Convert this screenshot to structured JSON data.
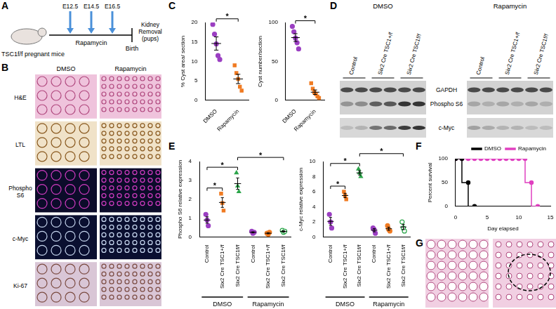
{
  "panels": [
    {
      "label": "A",
      "subject": "TSC1f/f pregnant mice",
      "timepoints": [
        "E12.5",
        "E14.5",
        "E16.5"
      ],
      "treatment": "Rapamycin",
      "end": "Birth",
      "outcome": "Kidney Removal (pups)"
    },
    {
      "label": "B",
      "columns": [
        "DMSO",
        "Rapamycin"
      ],
      "rows": [
        "H&E",
        "LTL",
        "Phospho S6",
        "c-Myc",
        "Ki-67"
      ]
    },
    {
      "label": "C"
    },
    {
      "label": "D",
      "blots": [
        "DMSO",
        "Rapamycin"
      ],
      "lanes": [
        "Control",
        "Six2 Cre TSC1+/f",
        "Six2 Cre TSC1f/f"
      ],
      "bands": [
        "GAPDH",
        "Phospho S6",
        "c-Myc"
      ]
    },
    {
      "label": "E"
    },
    {
      "label": "F"
    },
    {
      "label": "G"
    }
  ],
  "chart_data": [
    {
      "type": "scatter",
      "ylabel": "% Cyst area/ section",
      "categories": [
        "DMSO",
        "Rapamycin"
      ],
      "groups": [
        {
          "values": [
            19.5,
            17.0,
            14.5,
            11.5,
            10.5
          ],
          "mean": 14.6,
          "error": 1.7,
          "color": "#9b3fc2",
          "marker": "circle"
        },
        {
          "values": [
            9.0,
            7.0,
            5.5,
            3.5,
            2.5
          ],
          "mean": 5.5,
          "error": 1.2,
          "color": "#f07b22",
          "marker": "rect"
        }
      ],
      "significance": [
        {
          "from": 0,
          "to": 1,
          "label": "*"
        }
      ],
      "ylim": [
        0,
        20
      ],
      "yticks": [
        0,
        5,
        10,
        15,
        20
      ],
      "grid": false
    },
    {
      "type": "scatter",
      "ylabel": "Cyst number/section",
      "categories": [
        "DMSO",
        "Rapamycin"
      ],
      "groups": [
        {
          "values": [
            95,
            88,
            80,
            74,
            66
          ],
          "mean": 80.6,
          "error": 5.0,
          "color": "#9b3fc2",
          "marker": "circle"
        },
        {
          "values": [
            22,
            15,
            10,
            8,
            5,
            3
          ],
          "mean": 10.5,
          "error": 2.9,
          "color": "#f07b22",
          "marker": "rect"
        }
      ],
      "significance": [
        {
          "from": 0,
          "to": 1,
          "label": "*"
        }
      ],
      "ylim": [
        0,
        100
      ],
      "yticks": [
        0,
        50,
        100
      ],
      "grid": false
    },
    {
      "type": "scatter",
      "ylabel": "Phospho S6 relative expression",
      "categories": [
        "Control",
        "Six2 Cre TSC1+/f",
        "Six2 Cre TSC1f/f",
        "Control",
        "Six2 Cre TSC1+/f",
        "Six2 Cre TSC1f/f"
      ],
      "category_groups": [
        {
          "label": "DMSO",
          "from": 0,
          "to": 2
        },
        {
          "label": "Rapamycin",
          "from": 3,
          "to": 5
        }
      ],
      "groups": [
        {
          "values": [
            1.2,
            0.9,
            0.6
          ],
          "mean": 0.9,
          "error": 0.17,
          "color": "#9b3fc2",
          "marker": "circle"
        },
        {
          "values": [
            2.3,
            1.8,
            1.4
          ],
          "mean": 1.83,
          "error": 0.26,
          "color": "#f07b22",
          "marker": "rect"
        },
        {
          "values": [
            3.4,
            2.7,
            2.4
          ],
          "mean": 2.83,
          "error": 0.3,
          "color": "#2ca54a",
          "marker": "triangle"
        },
        {
          "values": [
            0.3,
            0.2,
            0.25
          ],
          "mean": 0.25,
          "error": 0.03,
          "color": "#9b3fc2",
          "marker": "circle"
        },
        {
          "values": [
            0.2,
            0.15,
            0.25
          ],
          "mean": 0.2,
          "error": 0.03,
          "color": "#f07b22",
          "marker": "circle"
        },
        {
          "values": [
            0.35,
            0.25,
            0.3
          ],
          "mean": 0.3,
          "error": 0.03,
          "color": "#2ca54a",
          "marker": "open-circle"
        }
      ],
      "significance": [
        {
          "from": 0,
          "to": 1,
          "label": "*"
        },
        {
          "from": 0,
          "to": 2,
          "label": "*"
        },
        {
          "from": 2,
          "to": 5,
          "label": "*"
        }
      ],
      "ylim": [
        0,
        4
      ],
      "yticks": [
        0,
        1,
        2,
        3,
        4
      ],
      "grid": false
    },
    {
      "type": "scatter",
      "ylabel": "c-Myc relative expression",
      "categories": [
        "Control",
        "Six2 Cre TSC1+/f",
        "Six2 Cre TSC1f/f",
        "Control",
        "Six2 Cre TSC1+/f",
        "Six2 Cre TSC1f/f"
      ],
      "category_groups": [
        {
          "label": "DMSO",
          "from": 0,
          "to": 2
        },
        {
          "label": "Rapamycin",
          "from": 3,
          "to": 5
        }
      ],
      "groups": [
        {
          "values": [
            3.0,
            2.0,
            1.2
          ],
          "mean": 2.07,
          "error": 0.52,
          "color": "#9b3fc2",
          "marker": "circle"
        },
        {
          "values": [
            6.0,
            5.5,
            5.0
          ],
          "mean": 5.5,
          "error": 0.29,
          "color": "#f07b22",
          "marker": "rect"
        },
        {
          "values": [
            9.0,
            8.5,
            8.0
          ],
          "mean": 8.5,
          "error": 0.29,
          "color": "#2ca54a",
          "marker": "triangle"
        },
        {
          "values": [
            1.2,
            1.0,
            0.5
          ],
          "mean": 0.9,
          "error": 0.21,
          "color": "#9b3fc2",
          "marker": "circle"
        },
        {
          "values": [
            1.5,
            1.0,
            0.8
          ],
          "mean": 1.1,
          "error": 0.21,
          "color": "#f07b22",
          "marker": "circle"
        },
        {
          "values": [
            2.0,
            1.2,
            0.8
          ],
          "mean": 1.33,
          "error": 0.35,
          "color": "#2ca54a",
          "marker": "open-circle"
        }
      ],
      "significance": [
        {
          "from": 0,
          "to": 1,
          "label": "*"
        },
        {
          "from": 0,
          "to": 2,
          "label": "*"
        },
        {
          "from": 2,
          "to": 5,
          "label": "*"
        }
      ],
      "ylim": [
        0,
        10
      ],
      "yticks": [
        0,
        2,
        4,
        6,
        8,
        10
      ],
      "grid": false
    },
    {
      "type": "line",
      "xlabel": "Day elapsed",
      "ylabel": "Percent survival",
      "line_style": "step",
      "legend": "top-right",
      "series": [
        {
          "name": "DMSO",
          "color": "#000000",
          "marker": "circle",
          "x": [
            0,
            1,
            2,
            3
          ],
          "values": [
            100,
            100,
            50,
            0
          ]
        },
        {
          "name": "Rapamycin",
          "color": "#e040c0",
          "marker": "circle",
          "x": [
            0,
            1,
            2,
            3,
            4,
            5,
            6,
            7,
            8,
            9,
            10,
            11,
            12,
            13
          ],
          "values": [
            100,
            100,
            100,
            100,
            100,
            100,
            100,
            100,
            100,
            100,
            100,
            100,
            50,
            0
          ]
        }
      ],
      "xlim": [
        0,
        15
      ],
      "xticks": [
        0,
        5,
        10,
        15
      ],
      "ylim": [
        0,
        100
      ],
      "yticks": [
        0,
        50,
        100
      ],
      "grid": false
    }
  ]
}
